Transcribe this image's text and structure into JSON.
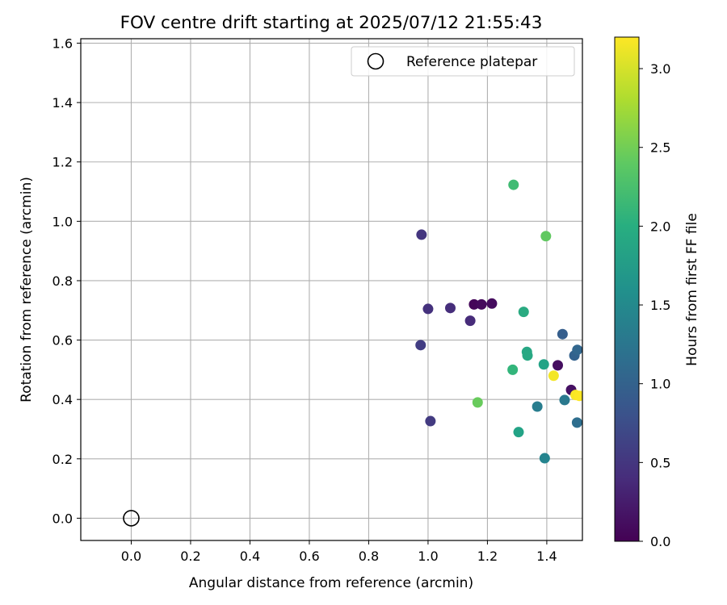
{
  "chart_data": {
    "type": "scatter",
    "title": "FOV centre drift starting at 2025/07/12 21:55:43",
    "xlabel": "Angular distance from reference (arcmin)",
    "ylabel": "Rotation from reference (arcmin)",
    "xlim": [
      -0.17,
      1.52
    ],
    "ylim": [
      -0.075,
      1.615
    ],
    "xticks": [
      "0.0",
      "0.2",
      "0.4",
      "0.6",
      "0.8",
      "1.0",
      "1.2",
      "1.4"
    ],
    "yticks": [
      "0.0",
      "0.2",
      "0.4",
      "0.6",
      "0.8",
      "1.0",
      "1.2",
      "1.4",
      "1.6"
    ],
    "grid": true,
    "legend": {
      "position": "top-right",
      "entries": [
        "Reference platepar"
      ]
    },
    "reference_point": {
      "x": 0.0,
      "y": 0.0,
      "label": "Reference platepar"
    },
    "colorbar": {
      "label": "Hours from first FF file",
      "min": 0.0,
      "max": 3.2,
      "ticks": [
        "0.0",
        "0.5",
        "1.0",
        "1.5",
        "2.0",
        "2.5",
        "3.0"
      ],
      "colormap": "viridis"
    },
    "points": [
      {
        "x": 1.155,
        "y": 0.72,
        "hours": 0.05
      },
      {
        "x": 1.18,
        "y": 0.72,
        "hours": 0.08
      },
      {
        "x": 1.215,
        "y": 0.723,
        "hours": 0.1
      },
      {
        "x": 1.437,
        "y": 0.515,
        "hours": 0.12
      },
      {
        "x": 1.482,
        "y": 0.432,
        "hours": 0.15
      },
      {
        "x": 1.142,
        "y": 0.665,
        "hours": 0.4
      },
      {
        "x": 1.075,
        "y": 0.708,
        "hours": 0.42
      },
      {
        "x": 1.0,
        "y": 0.705,
        "hours": 0.45
      },
      {
        "x": 0.978,
        "y": 0.955,
        "hours": 0.5
      },
      {
        "x": 1.008,
        "y": 0.327,
        "hours": 0.55
      },
      {
        "x": 0.975,
        "y": 0.583,
        "hours": 0.58
      },
      {
        "x": 1.453,
        "y": 0.62,
        "hours": 0.95
      },
      {
        "x": 1.493,
        "y": 0.548,
        "hours": 1.0
      },
      {
        "x": 1.503,
        "y": 0.567,
        "hours": 1.05
      },
      {
        "x": 1.502,
        "y": 0.322,
        "hours": 1.15
      },
      {
        "x": 1.46,
        "y": 0.398,
        "hours": 1.3
      },
      {
        "x": 1.368,
        "y": 0.376,
        "hours": 1.35
      },
      {
        "x": 1.393,
        "y": 0.202,
        "hours": 1.45
      },
      {
        "x": 1.39,
        "y": 0.518,
        "hours": 1.85
      },
      {
        "x": 1.305,
        "y": 0.29,
        "hours": 1.85
      },
      {
        "x": 1.333,
        "y": 0.56,
        "hours": 1.9
      },
      {
        "x": 1.335,
        "y": 0.548,
        "hours": 1.92
      },
      {
        "x": 1.322,
        "y": 0.695,
        "hours": 1.95
      },
      {
        "x": 1.285,
        "y": 0.5,
        "hours": 2.1
      },
      {
        "x": 1.288,
        "y": 1.123,
        "hours": 2.2
      },
      {
        "x": 1.397,
        "y": 0.95,
        "hours": 2.4
      },
      {
        "x": 1.167,
        "y": 0.39,
        "hours": 2.45
      },
      {
        "x": 1.423,
        "y": 0.48,
        "hours": 3.15
      },
      {
        "x": 1.497,
        "y": 0.415,
        "hours": 3.18
      },
      {
        "x": 1.51,
        "y": 0.412,
        "hours": 3.2
      }
    ]
  }
}
